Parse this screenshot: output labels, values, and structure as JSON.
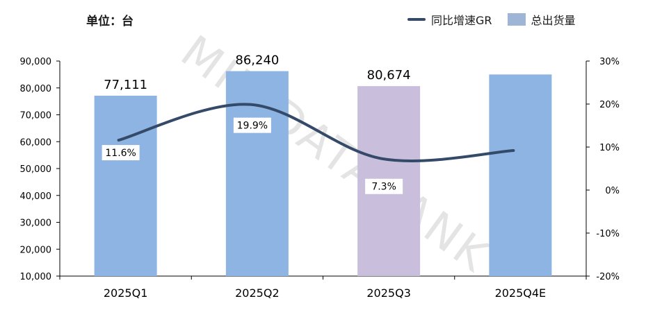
{
  "unit_label": "单位：台",
  "watermark": "MIR DATABANK",
  "colors": {
    "bar": "#8eb4e3",
    "bar_highlight": "#c9bfdd",
    "legend_bar": "#9eb5d6",
    "line": "#344a68",
    "axis": "#000000"
  },
  "chart_data": {
    "type": "bar",
    "categories": [
      "2025Q1",
      "2025Q2",
      "2025Q3",
      "2025Q4E"
    ],
    "series": [
      {
        "name": "总出货量",
        "type": "bar",
        "axis": "left",
        "values": [
          77111,
          86240,
          80674,
          85000
        ],
        "data_labels": [
          "77,111",
          "86,240",
          "80,674",
          ""
        ]
      },
      {
        "name": "同比增速GR",
        "type": "line",
        "axis": "right",
        "values": [
          11.6,
          19.9,
          7.3,
          9.2
        ],
        "data_labels": [
          "11.6%",
          "19.9%",
          "7.3%",
          ""
        ]
      }
    ],
    "y_left": {
      "min": 10000,
      "max": 90000,
      "ticks": [
        10000,
        20000,
        30000,
        40000,
        50000,
        60000,
        70000,
        80000,
        90000
      ],
      "tick_labels": [
        "10,000",
        "20,000",
        "30,000",
        "40,000",
        "50,000",
        "60,000",
        "70,000",
        "80,000",
        "90,000"
      ]
    },
    "y_right": {
      "min": -20,
      "max": 30,
      "ticks": [
        -20,
        -10,
        0,
        10,
        20,
        30
      ],
      "tick_labels": [
        "-20%",
        "-10%",
        "0%",
        "10%",
        "20%",
        "30%"
      ]
    },
    "legend": {
      "position": "top-right",
      "entries": [
        "同比增速GR",
        "总出货量"
      ]
    },
    "grid": false
  }
}
